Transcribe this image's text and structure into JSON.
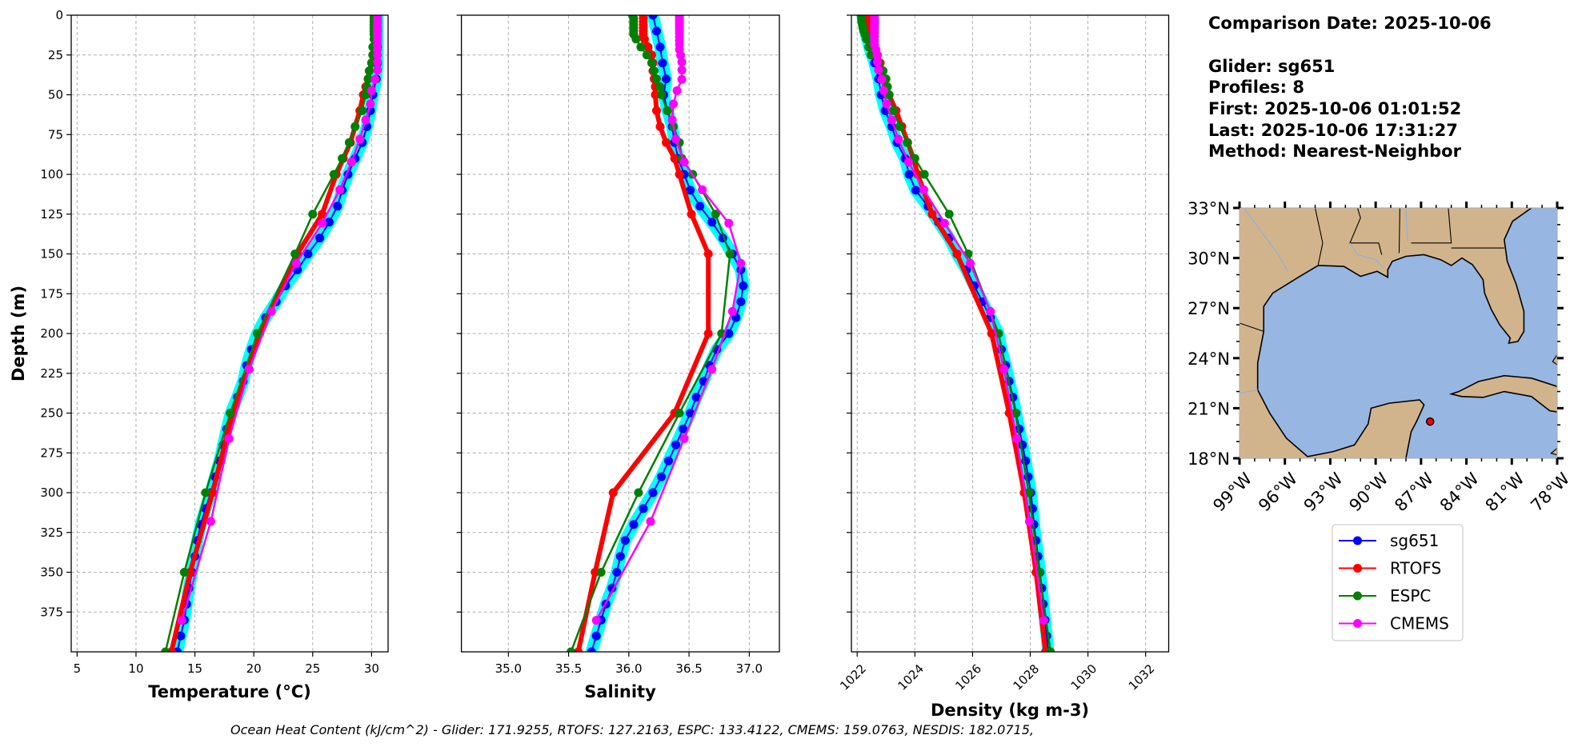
{
  "info": {
    "comparison_date": "Comparison Date: 2025-10-06",
    "glider": "Glider: sg651",
    "profiles": "Profiles: 8",
    "first": "First: 2025-10-06 01:01:52",
    "last": "Last: 2025-10-06 17:31:27",
    "method": "Method: Nearest-Neighbor"
  },
  "footer": "Ocean Heat Content (kJ/cm^2) - Glider: 171.9255,  RTOFS: 127.2163,  ESPC: 133.4122,  CMEMS: 159.0763,  NESDIS: 182.0715,",
  "colors": {
    "sg651": "#0000ff",
    "glider_profiles": "#00ffff",
    "RTOFS": "#ff0000",
    "ESPC": "#008000",
    "CMEMS": "#ff00ff",
    "land": "#d2b48c",
    "ocean": "#97b6e1",
    "grid": "#b0b0b0"
  },
  "legend": {
    "placement": "below-map",
    "entries": [
      "sg651",
      "RTOFS",
      "ESPC",
      "CMEMS"
    ]
  },
  "map": {
    "lon_range": [
      -99,
      -78
    ],
    "lat_range": [
      18,
      33
    ],
    "lat_ticks": [
      33,
      30,
      27,
      24,
      21,
      18
    ],
    "lat_labels": [
      "33°N",
      "30°N",
      "27°N",
      "24°N",
      "21°N",
      "18°N"
    ],
    "lon_ticks": [
      -99,
      -96,
      -93,
      -90,
      -87,
      -84,
      -81,
      -78
    ],
    "lon_labels": [
      "99°W",
      "96°W",
      "93°W",
      "90°W",
      "87°W",
      "84°W",
      "81°W",
      "78°W"
    ],
    "glider_position": {
      "lon": -86.4,
      "lat": 20.2,
      "color": "#ff0000"
    }
  },
  "chart_data": [
    {
      "type": "line",
      "xlabel": "Temperature (°C)",
      "ylabel": "Depth (m)",
      "xlim": [
        4.5,
        31.4
      ],
      "ylim": [
        400,
        0
      ],
      "grid": true,
      "xticks": [
        5,
        10,
        15,
        20,
        25,
        30
      ],
      "xtick_labels": [
        "5",
        "10",
        "15",
        "20",
        "25",
        "30"
      ],
      "yticks": [
        0,
        25,
        50,
        75,
        100,
        125,
        150,
        175,
        200,
        225,
        250,
        275,
        300,
        325,
        350,
        375
      ],
      "ytick_labels": [
        "0",
        "25",
        "50",
        "75",
        "100",
        "125",
        "150",
        "175",
        "200",
        "225",
        "250",
        "275",
        "300",
        "325",
        "350",
        "375"
      ],
      "series": [
        {
          "name": "sg651",
          "depth": [
            0,
            10,
            20,
            30,
            40,
            50,
            60,
            70,
            80,
            90,
            100,
            110,
            120,
            130,
            140,
            150,
            160,
            170,
            180,
            190,
            200,
            210,
            220,
            230,
            240,
            250,
            260,
            270,
            280,
            290,
            300,
            310,
            320,
            330,
            340,
            350,
            360,
            370,
            380,
            390,
            400
          ],
          "values": [
            30.5,
            30.5,
            30.5,
            30.5,
            30.4,
            30.1,
            29.9,
            29.6,
            29.2,
            28.6,
            28.0,
            27.5,
            27.1,
            26.4,
            25.6,
            24.6,
            23.7,
            22.7,
            21.9,
            21.0,
            20.3,
            19.8,
            19.4,
            19.1,
            18.6,
            18.05,
            17.7,
            17.4,
            17.1,
            16.7,
            16.35,
            15.9,
            15.5,
            15.2,
            15.0,
            14.75,
            14.5,
            14.3,
            14.1,
            13.8,
            13.5
          ]
        },
        {
          "name": "RTOFS",
          "depth": [
            0,
            2,
            4,
            6,
            8,
            10,
            12,
            15,
            20,
            25,
            30,
            35,
            40,
            45,
            50,
            60,
            70,
            80,
            90,
            100,
            125,
            150,
            200,
            250,
            300,
            350,
            400
          ],
          "values": [
            30.3,
            30.3,
            30.3,
            30.3,
            30.3,
            30.3,
            30.3,
            30.3,
            30.2,
            30.1,
            30.0,
            29.8,
            29.7,
            29.5,
            29.3,
            29.0,
            28.6,
            28.2,
            27.6,
            27.0,
            25.8,
            23.7,
            20.5,
            18.2,
            16.5,
            14.6,
            13.0
          ]
        },
        {
          "name": "ESPC",
          "depth": [
            0,
            2,
            4,
            6,
            8,
            10,
            12,
            15,
            20,
            25,
            30,
            35,
            40,
            45,
            50,
            60,
            70,
            80,
            90,
            100,
            125,
            150,
            200,
            250,
            300,
            350,
            400
          ],
          "values": [
            30.2,
            30.2,
            30.2,
            30.2,
            30.2,
            30.2,
            30.2,
            30.2,
            30.1,
            30.1,
            30.0,
            29.8,
            29.7,
            29.6,
            29.5,
            29.2,
            28.6,
            28.1,
            27.5,
            26.8,
            25.0,
            23.5,
            20.3,
            18.0,
            15.9,
            14.1,
            12.5
          ]
        },
        {
          "name": "CMEMS",
          "depth": [
            0.5,
            1.5,
            2.6,
            3.8,
            5.1,
            6.4,
            7.9,
            9.6,
            11.4,
            13.5,
            15.8,
            18.5,
            21.6,
            25.2,
            29.4,
            34.4,
            40.3,
            47.4,
            55.8,
            65.8,
            77.9,
            92.3,
            109.7,
            130.7,
            155.9,
            186.1,
            222.5,
            266.0,
            318.1,
            380.2
          ],
          "values": [
            30.5,
            30.5,
            30.5,
            30.5,
            30.5,
            30.5,
            30.5,
            30.5,
            30.5,
            30.5,
            30.5,
            30.5,
            30.5,
            30.5,
            30.5,
            30.5,
            30.3,
            30.0,
            29.9,
            29.5,
            29.0,
            28.3,
            27.3,
            25.8,
            23.6,
            21.5,
            19.6,
            17.9,
            16.35,
            13.9
          ]
        }
      ]
    },
    {
      "type": "line",
      "xlabel": "Salinity",
      "ylabel": "",
      "xlim": [
        34.61,
        37.25
      ],
      "ylim": [
        400,
        0
      ],
      "grid": true,
      "xticks": [
        35.0,
        35.5,
        36.0,
        36.5,
        37.0
      ],
      "xtick_labels": [
        "35.0",
        "35.5",
        "36.0",
        "36.5",
        "37.0"
      ],
      "yticks": [
        0,
        25,
        50,
        75,
        100,
        125,
        150,
        175,
        200,
        225,
        250,
        275,
        300,
        325,
        350,
        375
      ],
      "ytick_labels": [],
      "series": [
        {
          "name": "sg651",
          "depth": [
            0,
            10,
            20,
            30,
            40,
            50,
            60,
            70,
            80,
            90,
            100,
            110,
            120,
            130,
            140,
            150,
            160,
            170,
            180,
            190,
            200,
            210,
            220,
            230,
            240,
            250,
            260,
            270,
            280,
            290,
            300,
            310,
            320,
            330,
            340,
            350,
            360,
            370,
            380,
            390,
            400
          ],
          "values": [
            36.2,
            36.23,
            36.26,
            36.28,
            36.31,
            36.29,
            36.32,
            36.36,
            36.38,
            36.41,
            36.46,
            36.51,
            36.59,
            36.69,
            36.78,
            36.86,
            36.93,
            36.95,
            36.93,
            36.89,
            36.83,
            36.73,
            36.67,
            36.62,
            36.56,
            36.51,
            36.45,
            36.39,
            36.33,
            36.27,
            36.2,
            36.12,
            36.04,
            35.97,
            35.93,
            35.9,
            35.86,
            35.81,
            35.77,
            35.73,
            35.69
          ]
        },
        {
          "name": "RTOFS",
          "depth": [
            0,
            2,
            4,
            6,
            8,
            10,
            12,
            15,
            20,
            25,
            30,
            35,
            40,
            45,
            50,
            60,
            70,
            80,
            90,
            100,
            125,
            150,
            200,
            250,
            300,
            350,
            400
          ],
          "values": [
            36.12,
            36.12,
            36.12,
            36.12,
            36.12,
            36.12,
            36.12,
            36.13,
            36.16,
            36.19,
            36.2,
            36.2,
            36.21,
            36.22,
            36.22,
            36.23,
            36.26,
            36.31,
            36.38,
            36.42,
            36.52,
            36.66,
            36.66,
            36.38,
            35.87,
            35.72,
            35.58
          ]
        },
        {
          "name": "ESPC",
          "depth": [
            0,
            2,
            4,
            6,
            8,
            10,
            12,
            15,
            20,
            25,
            30,
            35,
            40,
            45,
            50,
            60,
            70,
            80,
            90,
            100,
            125,
            150,
            200,
            250,
            300,
            350,
            400
          ],
          "values": [
            36.03,
            36.04,
            36.04,
            36.04,
            36.04,
            36.04,
            36.04,
            36.06,
            36.1,
            36.15,
            36.19,
            36.21,
            36.23,
            36.26,
            36.27,
            36.32,
            36.37,
            36.42,
            36.44,
            36.53,
            36.72,
            36.84,
            36.77,
            36.42,
            36.08,
            35.77,
            35.52
          ]
        },
        {
          "name": "CMEMS",
          "depth": [
            0.5,
            1.5,
            2.6,
            3.8,
            5.1,
            6.4,
            7.9,
            9.6,
            11.4,
            13.5,
            15.8,
            18.5,
            21.6,
            25.2,
            29.4,
            34.4,
            40.3,
            47.4,
            55.8,
            65.8,
            77.9,
            92.3,
            109.7,
            130.7,
            155.9,
            186.1,
            222.5,
            266.0,
            318.1,
            380.2
          ],
          "values": [
            36.42,
            36.42,
            36.42,
            36.42,
            36.42,
            36.42,
            36.42,
            36.42,
            36.42,
            36.42,
            36.42,
            36.42,
            36.42,
            36.43,
            36.44,
            36.44,
            36.44,
            36.4,
            36.37,
            36.36,
            36.39,
            36.46,
            36.61,
            36.83,
            36.93,
            36.86,
            36.69,
            36.46,
            36.18,
            35.73
          ]
        }
      ]
    },
    {
      "type": "line",
      "xlabel": "Density (kg m-3)",
      "ylabel": "",
      "xlim": [
        1021.8,
        1032.8
      ],
      "ylim": [
        400,
        0
      ],
      "grid": true,
      "xticks": [
        1022,
        1024,
        1026,
        1028,
        1030,
        1032
      ],
      "xtick_labels": [
        "1022",
        "1024",
        "1026",
        "1028",
        "1030",
        "1032"
      ],
      "yticks": [
        0,
        25,
        50,
        75,
        100,
        125,
        150,
        175,
        200,
        225,
        250,
        275,
        300,
        325,
        350,
        375
      ],
      "ytick_labels": [],
      "series": [
        {
          "name": "sg651",
          "depth": [
            0,
            10,
            20,
            30,
            40,
            50,
            60,
            70,
            80,
            90,
            100,
            110,
            120,
            130,
            140,
            150,
            160,
            170,
            180,
            190,
            200,
            210,
            220,
            230,
            240,
            250,
            260,
            270,
            280,
            290,
            300,
            310,
            320,
            330,
            340,
            350,
            360,
            370,
            380,
            390,
            400
          ],
          "values": [
            1022.18,
            1022.28,
            1022.42,
            1022.6,
            1022.74,
            1022.83,
            1022.97,
            1023.2,
            1023.38,
            1023.66,
            1023.8,
            1024.03,
            1024.45,
            1024.82,
            1025.19,
            1025.46,
            1025.79,
            1026.06,
            1026.34,
            1026.62,
            1026.9,
            1027.0,
            1027.15,
            1027.27,
            1027.4,
            1027.51,
            1027.62,
            1027.73,
            1027.84,
            1027.93,
            1028.02,
            1028.08,
            1028.13,
            1028.2,
            1028.27,
            1028.34,
            1028.4,
            1028.45,
            1028.51,
            1028.57,
            1028.62
          ]
        },
        {
          "name": "RTOFS",
          "depth": [
            0,
            2,
            4,
            6,
            8,
            10,
            12,
            15,
            20,
            25,
            30,
            35,
            40,
            45,
            50,
            60,
            70,
            80,
            90,
            100,
            125,
            150,
            200,
            250,
            300,
            350,
            400
          ],
          "values": [
            1022.4,
            1022.4,
            1022.4,
            1022.42,
            1022.43,
            1022.45,
            1022.48,
            1022.52,
            1022.6,
            1022.7,
            1022.8,
            1022.88,
            1022.95,
            1023.03,
            1023.1,
            1023.35,
            1023.55,
            1023.75,
            1023.95,
            1024.1,
            1024.6,
            1025.46,
            1026.66,
            1027.27,
            1027.79,
            1028.2,
            1028.53
          ]
        },
        {
          "name": "ESPC",
          "depth": [
            0,
            2,
            4,
            6,
            8,
            10,
            12,
            15,
            20,
            25,
            30,
            35,
            40,
            45,
            50,
            60,
            70,
            80,
            90,
            100,
            125,
            150,
            200,
            250,
            300,
            350,
            400
          ],
          "values": [
            1022.14,
            1022.15,
            1022.16,
            1022.18,
            1022.2,
            1022.23,
            1022.27,
            1022.32,
            1022.4,
            1022.48,
            1022.75,
            1022.9,
            1023.0,
            1023.05,
            1023.11,
            1023.25,
            1023.48,
            1023.73,
            1024.0,
            1024.33,
            1025.19,
            1025.85,
            1026.9,
            1027.49,
            1027.95,
            1028.32,
            1028.7
          ]
        },
        {
          "name": "CMEMS",
          "depth": [
            0.5,
            1.5,
            2.6,
            3.8,
            5.1,
            6.4,
            7.9,
            9.6,
            11.4,
            13.5,
            15.8,
            18.5,
            21.6,
            25.2,
            29.4,
            34.4,
            40.3,
            47.4,
            55.8,
            65.8,
            77.9,
            92.3,
            109.7,
            130.7,
            155.9,
            186.1,
            222.5,
            266.0,
            318.1,
            380.2
          ],
          "values": [
            1022.6,
            1022.6,
            1022.6,
            1022.6,
            1022.6,
            1022.6,
            1022.6,
            1022.6,
            1022.6,
            1022.6,
            1022.6,
            1022.6,
            1022.65,
            1022.69,
            1022.7,
            1022.74,
            1022.85,
            1022.92,
            1023.02,
            1023.2,
            1023.43,
            1023.78,
            1024.31,
            1025.03,
            1025.92,
            1026.62,
            1027.09,
            1027.53,
            1027.97,
            1028.47
          ]
        }
      ]
    }
  ]
}
